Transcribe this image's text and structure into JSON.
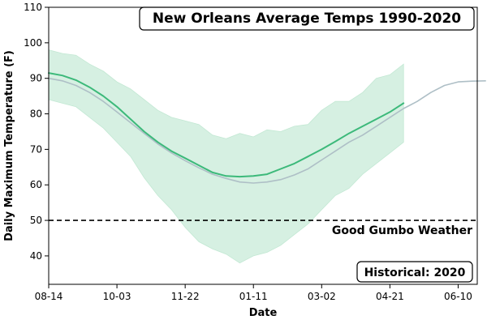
{
  "chart_data": {
    "type": "line",
    "title": "New Orleans Average Temps 1990-2020",
    "xlabel": "Date",
    "ylabel": "Daily Maximum Temperature (F)",
    "ylim": [
      32,
      110
    ],
    "y_ticks": [
      40,
      50,
      60,
      70,
      80,
      90,
      100,
      110
    ],
    "x_axis": {
      "start": "08-14",
      "end": "06-24"
    },
    "x_tick_labels": [
      "08-14",
      "10-03",
      "11-22",
      "01-11",
      "03-02",
      "04-21",
      "06-10"
    ],
    "x_tick_days": [
      0,
      50,
      100,
      150,
      200,
      250,
      300
    ],
    "grid": false,
    "series": [
      {
        "name": "",
        "role": "historical-mean",
        "color": "#aebfc6",
        "points": [
          [
            0,
            90
          ],
          [
            10,
            89.3
          ],
          [
            20,
            88
          ],
          [
            30,
            86
          ],
          [
            40,
            83.5
          ],
          [
            50,
            80.5
          ],
          [
            60,
            77.5
          ],
          [
            70,
            74.5
          ],
          [
            80,
            71.5
          ],
          [
            90,
            69
          ],
          [
            100,
            66.8
          ],
          [
            110,
            64.8
          ],
          [
            120,
            63
          ],
          [
            130,
            61.8
          ],
          [
            140,
            60.8
          ],
          [
            150,
            60.5
          ],
          [
            160,
            60.8
          ],
          [
            170,
            61.5
          ],
          [
            180,
            62.8
          ],
          [
            190,
            64.5
          ],
          [
            200,
            67
          ],
          [
            210,
            69.5
          ],
          [
            220,
            72
          ],
          [
            230,
            74
          ],
          [
            240,
            76.5
          ],
          [
            250,
            79
          ],
          [
            260,
            81.5
          ],
          [
            270,
            83.5
          ],
          [
            280,
            86
          ],
          [
            290,
            88
          ],
          [
            300,
            89
          ],
          [
            310,
            89.2
          ],
          [
            320,
            89.3
          ]
        ]
      },
      {
        "name": "",
        "role": "2020",
        "color": "#3cb97a",
        "points": [
          [
            0,
            91.5
          ],
          [
            10,
            90.8
          ],
          [
            20,
            89.5
          ],
          [
            30,
            87.5
          ],
          [
            40,
            85
          ],
          [
            50,
            82
          ],
          [
            60,
            78.5
          ],
          [
            70,
            75
          ],
          [
            80,
            72
          ],
          [
            90,
            69.5
          ],
          [
            100,
            67.5
          ],
          [
            110,
            65.5
          ],
          [
            120,
            63.5
          ],
          [
            130,
            62.5
          ],
          [
            140,
            62.3
          ],
          [
            150,
            62.5
          ],
          [
            160,
            63
          ],
          [
            170,
            64.5
          ],
          [
            180,
            66
          ],
          [
            190,
            68
          ],
          [
            200,
            70
          ],
          [
            210,
            72.2
          ],
          [
            220,
            74.5
          ],
          [
            230,
            76.5
          ],
          [
            240,
            78.5
          ],
          [
            250,
            80.5
          ],
          [
            260,
            83
          ]
        ]
      }
    ],
    "range_band": {
      "role": "daily-range",
      "color": "#d6f0e2",
      "x": [
        0,
        10,
        20,
        30,
        40,
        50,
        60,
        70,
        80,
        90,
        100,
        110,
        120,
        130,
        140,
        150,
        160,
        170,
        180,
        190,
        200,
        210,
        220,
        230,
        240,
        250,
        260
      ],
      "upper": [
        98,
        97,
        96.5,
        94,
        92,
        89,
        87,
        84,
        81,
        79,
        78,
        77,
        74,
        73,
        74.5,
        73.5,
        75.5,
        75,
        76.5,
        77,
        81,
        83.5,
        83.5,
        86,
        90,
        91,
        94
      ],
      "lower": [
        84,
        83,
        82,
        79,
        76,
        72,
        68,
        62,
        57,
        53,
        48,
        44,
        42,
        40.5,
        38,
        40,
        41,
        43,
        46,
        49,
        53,
        57,
        59,
        63,
        66,
        69,
        72
      ]
    },
    "reference_line": {
      "value": 50,
      "label": "Good Gumbo Weather",
      "style": "dashed"
    },
    "annotation": "Historical: 2020"
  }
}
